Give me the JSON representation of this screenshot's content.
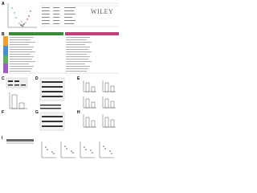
{
  "watermark": "WILEY",
  "panels": [
    {
      "label": "A"
    },
    {
      "label": "B"
    },
    {
      "label": "C"
    },
    {
      "label": "D"
    },
    {
      "label": "E"
    },
    {
      "label": "F"
    },
    {
      "label": "G"
    },
    {
      "label": "H"
    },
    {
      "label": "I"
    }
  ]
}
